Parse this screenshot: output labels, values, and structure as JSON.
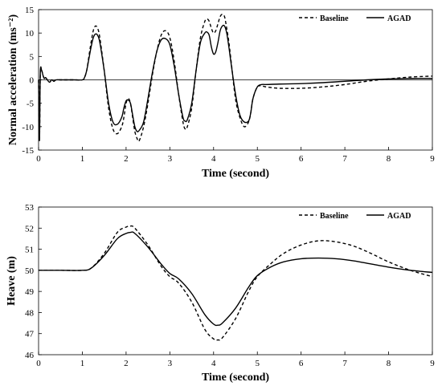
{
  "chart_data": [
    {
      "type": "line",
      "xlabel": "Time (second)",
      "ylabel": "Normal acceleration (ms⁻²)",
      "xlim": [
        0,
        9
      ],
      "ylim": [
        -15,
        15
      ],
      "x_ticks": [
        "0",
        "1",
        "2",
        "3",
        "4",
        "5",
        "6",
        "7",
        "8",
        "9"
      ],
      "y_ticks": [
        "-15",
        "-10",
        "-5",
        "0",
        "5",
        "10",
        "15"
      ],
      "grid": false,
      "legend_position": "top-right",
      "series": [
        {
          "name": "Baseline",
          "style": "dashed",
          "x": [
            0,
            0.02,
            0.04,
            0.07,
            0.1,
            0.13,
            0.16,
            0.2,
            0.25,
            0.3,
            0.35,
            0.4,
            0.5,
            0.6,
            0.8,
            1.0,
            1.05,
            1.1,
            1.15,
            1.2,
            1.25,
            1.3,
            1.35,
            1.4,
            1.5,
            1.6,
            1.7,
            1.8,
            1.9,
            1.95,
            2.0,
            2.05,
            2.1,
            2.15,
            2.2,
            2.25,
            2.3,
            2.4,
            2.5,
            2.6,
            2.7,
            2.8,
            2.9,
            3.0,
            3.1,
            3.2,
            3.3,
            3.35,
            3.4,
            3.5,
            3.6,
            3.7,
            3.8,
            3.85,
            3.9,
            3.95,
            4.0,
            4.05,
            4.1,
            4.15,
            4.2,
            4.25,
            4.3,
            4.35,
            4.4,
            4.5,
            4.6,
            4.7,
            4.8,
            4.85,
            4.9,
            5.0,
            5.1,
            5.2,
            5.5,
            6.0,
            6.5,
            7.0,
            7.5,
            8.0,
            8.5,
            9.0
          ],
          "y": [
            0,
            -13,
            1,
            2,
            1,
            0.3,
            0.5,
            0,
            -0.5,
            0,
            -0.3,
            0,
            0,
            0,
            0,
            0,
            0.5,
            2,
            5,
            8,
            10.5,
            11.5,
            11,
            9,
            2,
            -6,
            -10.5,
            -11.5,
            -10,
            -8,
            -5,
            -4,
            -5,
            -8,
            -11,
            -12.5,
            -13,
            -10,
            -5,
            1,
            6,
            9.5,
            10.5,
            9,
            4,
            -3,
            -9,
            -10.5,
            -10,
            -6,
            2,
            9,
            12.5,
            13,
            12.5,
            11,
            10,
            10.5,
            12,
            13.5,
            14,
            13.5,
            11,
            8,
            4,
            -4,
            -8,
            -10,
            -9,
            -7,
            -4,
            -1.5,
            -1.3,
            -1.5,
            -1.8,
            -1.8,
            -1.5,
            -1,
            -0.3,
            0.2,
            0.6,
            0.8
          ]
        },
        {
          "name": "AGAD",
          "style": "solid",
          "x": [
            0,
            0.02,
            0.04,
            0.07,
            0.1,
            0.13,
            0.16,
            0.2,
            0.25,
            0.3,
            0.35,
            0.4,
            0.5,
            0.6,
            0.8,
            1.0,
            1.05,
            1.1,
            1.15,
            1.2,
            1.25,
            1.3,
            1.35,
            1.4,
            1.5,
            1.6,
            1.7,
            1.8,
            1.9,
            1.95,
            2.0,
            2.05,
            2.1,
            2.15,
            2.2,
            2.25,
            2.3,
            2.4,
            2.5,
            2.6,
            2.7,
            2.8,
            2.9,
            3.0,
            3.1,
            3.2,
            3.3,
            3.35,
            3.4,
            3.5,
            3.6,
            3.7,
            3.8,
            3.85,
            3.9,
            3.95,
            4.0,
            4.05,
            4.1,
            4.15,
            4.2,
            4.25,
            4.3,
            4.35,
            4.4,
            4.5,
            4.6,
            4.7,
            4.8,
            4.85,
            4.9,
            5.0,
            5.1,
            5.2,
            5.5,
            6.0,
            6.5,
            7.0,
            7.5,
            8.0,
            8.5,
            9.0
          ],
          "y": [
            0,
            -13,
            1.5,
            2,
            1,
            0.3,
            0.5,
            0,
            -0.5,
            0,
            -0.3,
            0,
            0,
            0,
            0,
            0,
            0.5,
            2,
            4.5,
            7,
            9,
            9.8,
            9.5,
            8,
            2,
            -5,
            -9,
            -9.5,
            -8,
            -6,
            -4.5,
            -4.3,
            -5,
            -7.5,
            -10,
            -11,
            -10.8,
            -9,
            -4,
            1.5,
            6,
            8.5,
            8.8,
            7.5,
            3,
            -3,
            -8,
            -8.8,
            -8.5,
            -5,
            2,
            8,
            10,
            10.2,
            9.5,
            7,
            5.5,
            6,
            8,
            10.5,
            11.5,
            11.5,
            10,
            7,
            3.5,
            -3,
            -7.5,
            -9,
            -8.8,
            -7,
            -4,
            -1.5,
            -1,
            -1,
            -0.9,
            -0.8,
            -0.6,
            -0.3,
            0,
            0.2,
            0.3,
            0.3
          ]
        }
      ]
    },
    {
      "type": "line",
      "xlabel": "Time (second)",
      "ylabel": "Heave (m)",
      "xlim": [
        0,
        9
      ],
      "ylim": [
        46,
        53
      ],
      "x_ticks": [
        "0",
        "1",
        "2",
        "3",
        "4",
        "5",
        "6",
        "7",
        "8",
        "9"
      ],
      "y_ticks": [
        "46",
        "47",
        "48",
        "49",
        "50",
        "51",
        "52",
        "53"
      ],
      "grid": false,
      "legend_position": "top-right",
      "series": [
        {
          "name": "Baseline",
          "style": "dashed",
          "x": [
            0,
            0.5,
            1.0,
            1.2,
            1.5,
            1.8,
            2.0,
            2.1,
            2.2,
            2.5,
            2.8,
            3.0,
            3.2,
            3.5,
            3.8,
            4.0,
            4.1,
            4.2,
            4.5,
            4.8,
            5.0,
            5.3,
            5.6,
            6.0,
            6.4,
            6.8,
            7.2,
            7.6,
            8.0,
            8.5,
            9.0
          ],
          "y": [
            50,
            50,
            50,
            50.1,
            50.8,
            51.8,
            52.05,
            52.1,
            52.0,
            51.2,
            50.2,
            49.7,
            49.4,
            48.5,
            47.2,
            46.75,
            46.7,
            46.8,
            47.7,
            49.0,
            49.7,
            50.3,
            50.8,
            51.2,
            51.4,
            51.35,
            51.15,
            50.8,
            50.4,
            50.0,
            49.7
          ]
        },
        {
          "name": "AGAD",
          "style": "solid",
          "x": [
            0,
            0.5,
            1.0,
            1.2,
            1.5,
            1.8,
            2.0,
            2.1,
            2.2,
            2.5,
            2.8,
            3.0,
            3.2,
            3.5,
            3.8,
            4.0,
            4.1,
            4.2,
            4.5,
            4.8,
            5.0,
            5.3,
            5.6,
            6.0,
            6.4,
            6.8,
            7.2,
            7.6,
            8.0,
            8.5,
            9.0
          ],
          "y": [
            50,
            50,
            50,
            50.1,
            50.7,
            51.5,
            51.75,
            51.8,
            51.75,
            51.1,
            50.3,
            49.85,
            49.6,
            48.9,
            47.9,
            47.45,
            47.4,
            47.5,
            48.2,
            49.2,
            49.75,
            50.15,
            50.4,
            50.55,
            50.58,
            50.55,
            50.45,
            50.3,
            50.15,
            50.0,
            49.9
          ]
        }
      ]
    }
  ]
}
